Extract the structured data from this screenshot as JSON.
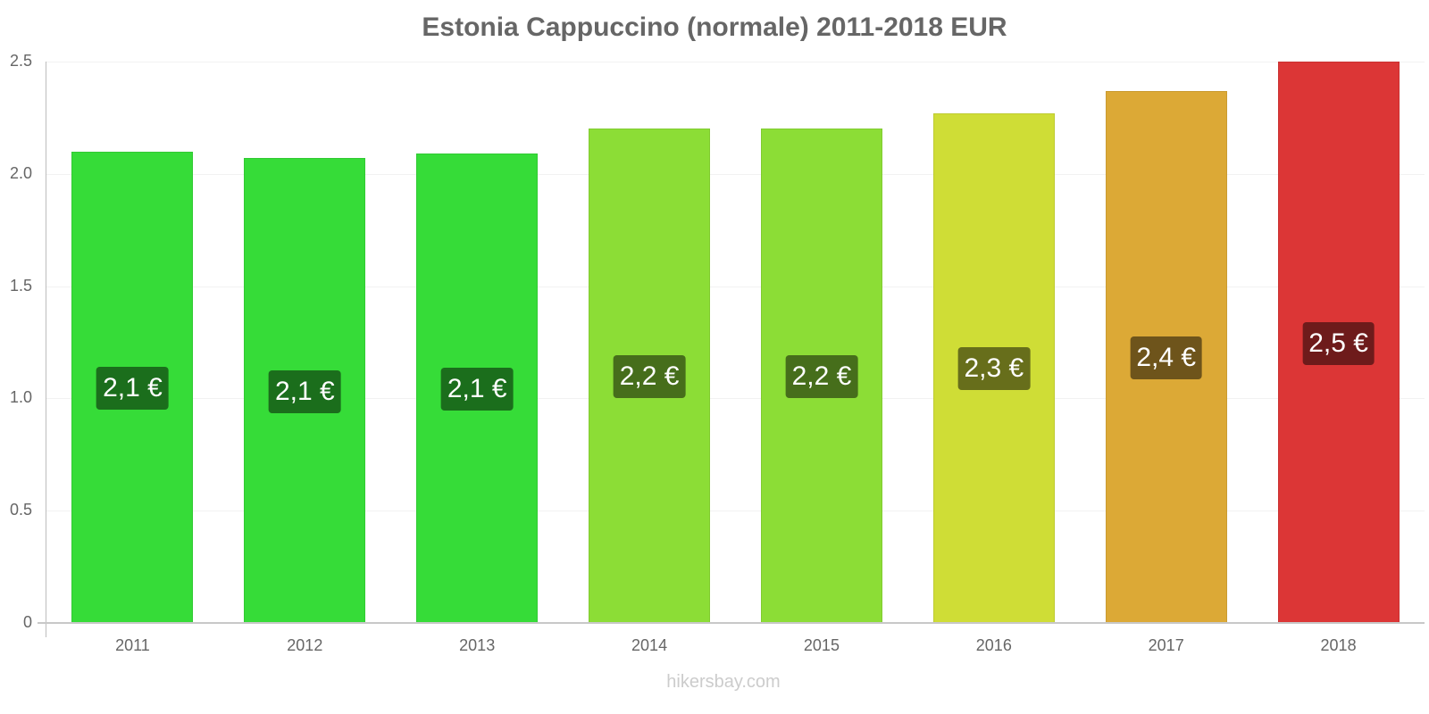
{
  "title": "Estonia Cappuccino (normale) 2011-2018 EUR",
  "watermark": "hikersbay.com",
  "y_ticks": [
    "0",
    "0.5",
    "1.0",
    "1.5",
    "2.0",
    "2.5"
  ],
  "bars": [
    {
      "year": "2011",
      "value": 2.1,
      "label": "2,1 €",
      "color": "#36dc38",
      "label_bg": "#1b6e1c"
    },
    {
      "year": "2012",
      "value": 2.07,
      "label": "2,1 €",
      "color": "#36dc38",
      "label_bg": "#1b6e1c"
    },
    {
      "year": "2013",
      "value": 2.09,
      "label": "2,1 €",
      "color": "#36dc38",
      "label_bg": "#1b6e1c"
    },
    {
      "year": "2014",
      "value": 2.2,
      "label": "2,2 €",
      "color": "#8cdd36",
      "label_bg": "#466e1b"
    },
    {
      "year": "2015",
      "value": 2.2,
      "label": "2,2 €",
      "color": "#8cdd36",
      "label_bg": "#466e1b"
    },
    {
      "year": "2016",
      "value": 2.27,
      "label": "2,3 €",
      "color": "#cfdd36",
      "label_bg": "#676e1b"
    },
    {
      "year": "2017",
      "value": 2.37,
      "label": "2,4 €",
      "color": "#dca936",
      "label_bg": "#6e541b"
    },
    {
      "year": "2018",
      "value": 2.5,
      "label": "2,5 €",
      "color": "#dc3636",
      "label_bg": "#6e1b1b"
    }
  ],
  "chart_data": {
    "type": "bar",
    "title": "Estonia Cappuccino (normale) 2011-2018 EUR",
    "xlabel": "",
    "ylabel": "",
    "categories": [
      "2011",
      "2012",
      "2013",
      "2014",
      "2015",
      "2016",
      "2017",
      "2018"
    ],
    "values": [
      2.1,
      2.07,
      2.09,
      2.2,
      2.2,
      2.27,
      2.37,
      2.5
    ],
    "data_labels": [
      "2,1 €",
      "2,1 €",
      "2,1 €",
      "2,2 €",
      "2,2 €",
      "2,3 €",
      "2,4 €",
      "2,5 €"
    ],
    "ylim": [
      0,
      2.5
    ],
    "yticks": [
      0,
      0.5,
      1.0,
      1.5,
      2.0,
      2.5
    ],
    "grid": true,
    "legend": null,
    "unit": "EUR"
  }
}
